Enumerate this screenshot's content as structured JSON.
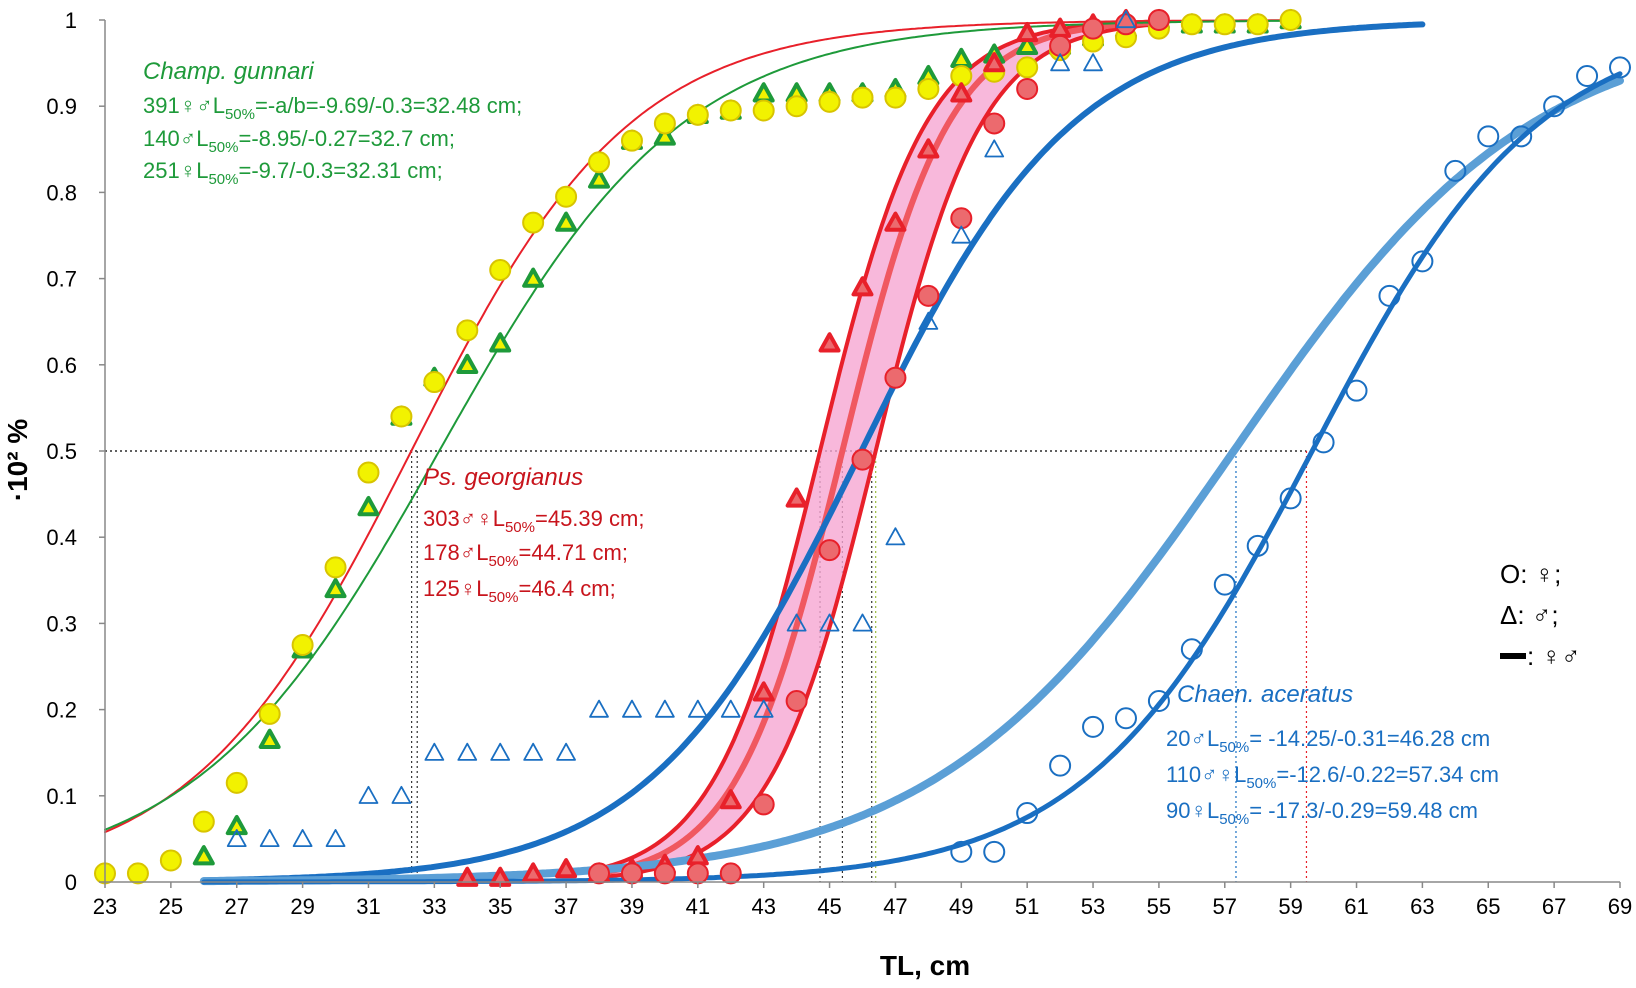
{
  "chart_data": {
    "type": "scatter",
    "title": "",
    "xlabel": "TL, cm",
    "ylabel": "·10² %",
    "xlim": [
      23,
      69
    ],
    "ylim": [
      0,
      1
    ],
    "x_ticks": [
      "23",
      "25",
      "27",
      "29",
      "31",
      "33",
      "35",
      "37",
      "39",
      "41",
      "43",
      "45",
      "47",
      "49",
      "51",
      "53",
      "55",
      "57",
      "59",
      "61",
      "63",
      "65",
      "67",
      "69"
    ],
    "y_ticks": [
      "0",
      "0.1",
      "0.2",
      "0.3",
      "0.4",
      "0.5",
      "0.6",
      "0.7",
      "0.8",
      "0.9",
      "1"
    ],
    "colors": {
      "green": "#1e9a3a",
      "yellow": "#f2f200",
      "red": "#e8202a",
      "pink": "#f6a6d2",
      "blue": "#1a6fc2",
      "lightblue": "#5b9fd6"
    },
    "reference_lines": {
      "y": 0.5,
      "x": [
        32.31,
        32.48,
        44.71,
        45.39,
        46.28,
        46.4,
        57.34,
        59.48
      ]
    },
    "annotations": {
      "champ": {
        "species": "Champ. gunnari",
        "l1_pre": "391♀♂L",
        "l1_sub": "50%",
        "l1_post": "=-a/b=-9.69/-0.3=32.48 cm;",
        "l2_pre": "140♂L",
        "l2_sub": "50%",
        "l2_post": "=-8.95/-0.27=32.7 cm;",
        "l3_pre": "251♀L",
        "l3_sub": "50%",
        "l3_post": "=-9.7/-0.3=32.31 cm;"
      },
      "ps": {
        "species": "Ps. georgianus",
        "l1_pre": "303♂♀L",
        "l1_sub": "50%",
        "l1_post": "=45.39 cm;",
        "l2_pre": "178♂L",
        "l2_sub": "50%",
        "l2_post": "=44.71 cm;",
        "l3_pre": "125♀L",
        "l3_sub": "50%",
        "l3_post": "=46.4 cm;"
      },
      "chaen": {
        "species": "Chaen. aceratus",
        "l1_pre": "20♂L",
        "l1_sub": "50%",
        "l1_post": "= -14.25/-0.31=46.28 cm",
        "l2_pre": "110♂♀L",
        "l2_sub": "50%",
        "l2_post": "=-12.6/-0.22=57.34 cm",
        "l3_pre": "90♀L",
        "l3_sub": "50%",
        "l3_post": "= -17.3/-0.29=59.48 cm"
      }
    },
    "legend": {
      "circle": "O:  ♀;",
      "triangle": "Δ:  ♂;",
      "line": ": ♀♂"
    },
    "curves": [
      {
        "name": "Champ. gunnari ♀♂ fit (red)",
        "a": 9.69,
        "b": -0.3,
        "x_range": [
          23,
          59
        ],
        "color": "red",
        "width": 2
      },
      {
        "name": "Champ. gunnari ♂ fit (green)",
        "a": 8.95,
        "b": -0.27,
        "x_range": [
          23,
          59
        ],
        "color": "green",
        "width": 2
      },
      {
        "name": "Chaen. aceratus ♂ fit",
        "a": 14.25,
        "b": -0.31,
        "x_range": [
          26,
          63
        ],
        "color": "blue",
        "width": 6
      },
      {
        "name": "Chaen. aceratus ♂♀ fit",
        "a": 12.6,
        "b": -0.22,
        "x_range": [
          26,
          69
        ],
        "color": "lightblue",
        "width": 8
      },
      {
        "name": "Chaen. aceratus ♀ fit",
        "a": 17.3,
        "b": -0.29,
        "x_range": [
          26,
          69
        ],
        "color": "blue",
        "width": 5
      }
    ],
    "ps_band": {
      "upper_L50": 44.71,
      "lower_L50": 46.4,
      "mid_L50": 45.39,
      "slope": 0.62,
      "x_range": [
        38,
        55
      ]
    },
    "series": [
      {
        "name": "Champ. gunnari ♂ (triangles)",
        "marker": "triangle",
        "color": "green",
        "fill": "yellow",
        "points": [
          [
            26,
            0.03
          ],
          [
            27,
            0.065
          ],
          [
            28,
            0.165
          ],
          [
            29,
            0.27
          ],
          [
            30,
            0.34
          ],
          [
            31,
            0.435
          ],
          [
            32,
            0.54
          ],
          [
            33,
            0.585
          ],
          [
            34,
            0.6
          ],
          [
            35,
            0.625
          ],
          [
            36,
            0.7
          ],
          [
            37,
            0.765
          ],
          [
            38,
            0.815
          ],
          [
            39,
            0.86
          ],
          [
            40,
            0.865
          ],
          [
            41,
            0.89
          ],
          [
            42,
            0.895
          ],
          [
            43,
            0.915
          ],
          [
            44,
            0.915
          ],
          [
            45,
            0.915
          ],
          [
            46,
            0.915
          ],
          [
            47,
            0.92
          ],
          [
            48,
            0.935
          ],
          [
            49,
            0.955
          ],
          [
            50,
            0.96
          ],
          [
            51,
            0.97
          ],
          [
            52,
            0.97
          ],
          [
            53,
            0.98
          ],
          [
            54,
            0.99
          ],
          [
            55,
            1.0
          ],
          [
            56,
            0.995
          ],
          [
            57,
            0.995
          ],
          [
            58,
            0.995
          ],
          [
            59,
            1.0
          ]
        ]
      },
      {
        "name": "Champ. gunnari ♀ (circles)",
        "marker": "circle",
        "color": "#d8c400",
        "fill": "yellow",
        "points": [
          [
            23,
            0.01
          ],
          [
            24,
            0.01
          ],
          [
            25,
            0.025
          ],
          [
            26,
            0.07
          ],
          [
            27,
            0.115
          ],
          [
            28,
            0.195
          ],
          [
            29,
            0.275
          ],
          [
            30,
            0.365
          ],
          [
            31,
            0.475
          ],
          [
            32,
            0.54
          ],
          [
            33,
            0.58
          ],
          [
            34,
            0.64
          ],
          [
            35,
            0.71
          ],
          [
            36,
            0.765
          ],
          [
            37,
            0.795
          ],
          [
            38,
            0.835
          ],
          [
            39,
            0.86
          ],
          [
            40,
            0.88
          ],
          [
            41,
            0.89
          ],
          [
            42,
            0.895
          ],
          [
            43,
            0.895
          ],
          [
            44,
            0.9
          ],
          [
            45,
            0.905
          ],
          [
            46,
            0.91
          ],
          [
            47,
            0.91
          ],
          [
            48,
            0.92
          ],
          [
            49,
            0.935
          ],
          [
            50,
            0.94
          ],
          [
            51,
            0.945
          ],
          [
            52,
            0.965
          ],
          [
            53,
            0.975
          ],
          [
            54,
            0.98
          ],
          [
            55,
            0.99
          ],
          [
            56,
            0.995
          ],
          [
            57,
            0.995
          ],
          [
            58,
            0.995
          ],
          [
            59,
            1.0
          ]
        ]
      },
      {
        "name": "Ps. georgianus ♂ (triangles)",
        "marker": "triangle",
        "color": "red",
        "fill": "#ec6a6e",
        "points": [
          [
            34,
            0.005
          ],
          [
            35,
            0.005
          ],
          [
            36,
            0.01
          ],
          [
            37,
            0.015
          ],
          [
            38,
            0.01
          ],
          [
            39,
            0.015
          ],
          [
            40,
            0.02
          ],
          [
            41,
            0.03
          ],
          [
            42,
            0.095
          ],
          [
            43,
            0.22
          ],
          [
            44,
            0.445
          ],
          [
            45,
            0.625
          ],
          [
            46,
            0.69
          ],
          [
            47,
            0.765
          ],
          [
            48,
            0.85
          ],
          [
            49,
            0.915
          ],
          [
            50,
            0.95
          ],
          [
            51,
            0.985
          ],
          [
            52,
            0.99
          ],
          [
            53,
            0.995
          ],
          [
            54,
            1.0
          ]
        ]
      },
      {
        "name": "Ps. georgianus ♀ (circles)",
        "marker": "circle",
        "color": "red",
        "fill": "#ec6a6e",
        "points": [
          [
            38,
            0.01
          ],
          [
            39,
            0.01
          ],
          [
            40,
            0.01
          ],
          [
            41,
            0.01
          ],
          [
            42,
            0.01
          ],
          [
            43,
            0.09
          ],
          [
            44,
            0.21
          ],
          [
            45,
            0.385
          ],
          [
            46,
            0.49
          ],
          [
            47,
            0.585
          ],
          [
            48,
            0.68
          ],
          [
            49,
            0.77
          ],
          [
            50,
            0.88
          ],
          [
            51,
            0.92
          ],
          [
            52,
            0.97
          ],
          [
            53,
            0.99
          ],
          [
            54,
            0.995
          ],
          [
            55,
            1.0
          ]
        ]
      },
      {
        "name": "Chaen. aceratus ♂ (triangles)",
        "marker": "triangle",
        "color": "blue",
        "fill": "none",
        "points": [
          [
            27,
            0.05
          ],
          [
            28,
            0.05
          ],
          [
            29,
            0.05
          ],
          [
            30,
            0.05
          ],
          [
            31,
            0.1
          ],
          [
            32,
            0.1
          ],
          [
            33,
            0.15
          ],
          [
            34,
            0.15
          ],
          [
            35,
            0.15
          ],
          [
            36,
            0.15
          ],
          [
            37,
            0.15
          ],
          [
            38,
            0.2
          ],
          [
            39,
            0.2
          ],
          [
            40,
            0.2
          ],
          [
            41,
            0.2
          ],
          [
            42,
            0.2
          ],
          [
            43,
            0.2
          ],
          [
            44,
            0.3
          ],
          [
            45,
            0.3
          ],
          [
            46,
            0.3
          ],
          [
            47,
            0.4
          ],
          [
            48,
            0.65
          ],
          [
            49,
            0.75
          ],
          [
            50,
            0.85
          ],
          [
            52,
            0.95
          ],
          [
            53,
            0.95
          ],
          [
            54,
            1.0
          ]
        ]
      },
      {
        "name": "Chaen. aceratus ♀ (circles)",
        "marker": "circle",
        "color": "blue",
        "fill": "none",
        "points": [
          [
            49,
            0.035
          ],
          [
            50,
            0.035
          ],
          [
            51,
            0.08
          ],
          [
            52,
            0.135
          ],
          [
            53,
            0.18
          ],
          [
            54,
            0.19
          ],
          [
            55,
            0.21
          ],
          [
            56,
            0.27
          ],
          [
            57,
            0.345
          ],
          [
            58,
            0.39
          ],
          [
            59,
            0.445
          ],
          [
            60,
            0.51
          ],
          [
            61,
            0.57
          ],
          [
            62,
            0.68
          ],
          [
            63,
            0.72
          ],
          [
            64,
            0.825
          ],
          [
            65,
            0.865
          ],
          [
            66,
            0.865
          ],
          [
            67,
            0.9
          ],
          [
            68,
            0.935
          ],
          [
            69,
            0.945
          ]
        ]
      }
    ]
  }
}
